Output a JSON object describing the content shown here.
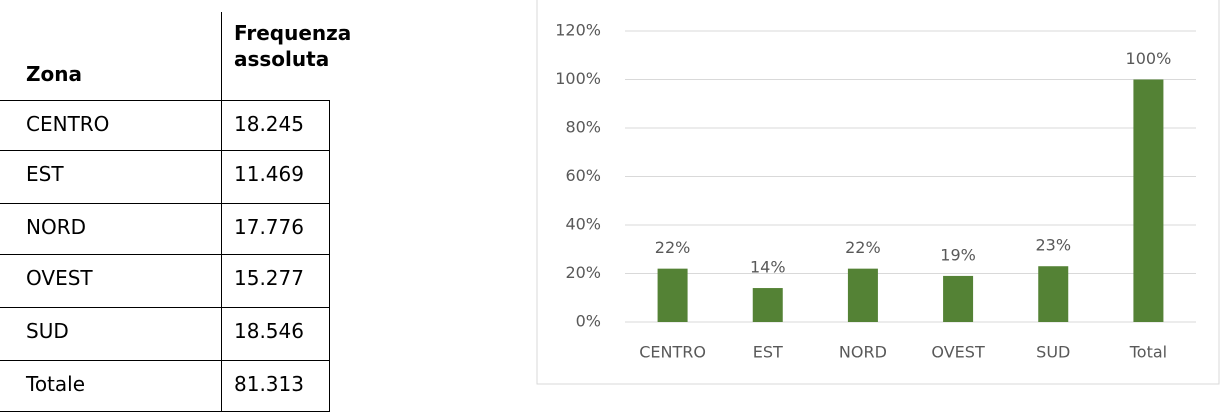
{
  "table": {
    "header": [
      "Zona",
      "Frequenza assoluta"
    ],
    "rows": [
      [
        "CENTRO",
        "18.245"
      ],
      [
        "EST",
        "11.469"
      ],
      [
        "NORD",
        "17.776"
      ],
      [
        "OVEST",
        "15.277"
      ],
      [
        "SUD",
        "18.546"
      ],
      [
        "Totale",
        "81.313"
      ]
    ]
  },
  "chart_data": {
    "type": "bar",
    "categories": [
      "CENTRO",
      "EST",
      "NORD",
      "OVEST",
      "SUD",
      "Total"
    ],
    "values": [
      22,
      14,
      22,
      19,
      23,
      100
    ],
    "value_labels": [
      "22%",
      "14%",
      "22%",
      "19%",
      "23%",
      "100%"
    ],
    "color": "#548235",
    "ylim": [
      0,
      120
    ],
    "yticks": [
      {
        "value": 0,
        "label": "0%"
      },
      {
        "value": 20,
        "label": "20%"
      },
      {
        "value": 40,
        "label": "40%"
      },
      {
        "value": 60,
        "label": "60%"
      },
      {
        "value": 80,
        "label": "80%"
      },
      {
        "value": 100,
        "label": "100%"
      },
      {
        "value": 120,
        "label": "120%"
      }
    ],
    "grid": true
  }
}
